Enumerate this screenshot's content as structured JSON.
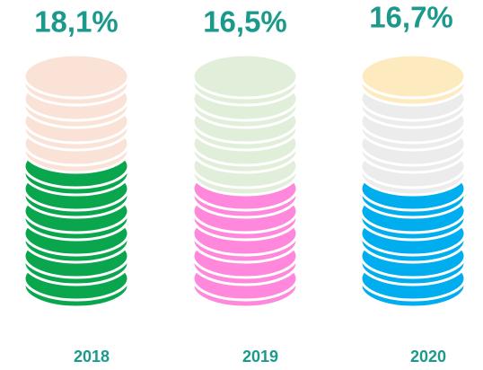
{
  "chart_data": {
    "type": "coin-stack",
    "categories": [
      "2018",
      "2019",
      "2020"
    ],
    "values": [
      18.1,
      16.5,
      16.7
    ],
    "value_labels": [
      "18,1%",
      "16,5%",
      "16,7%"
    ],
    "colors": [
      "#0aa64e",
      "#ff88dd",
      "#00aeef"
    ],
    "empty_colors": [
      "#fae2d6",
      "#e1eed9",
      "#ececec"
    ],
    "top_colors": [
      "#fae2d6",
      "#e1eed9",
      "#fdebbf"
    ],
    "ylim": [
      0,
      35
    ]
  }
}
